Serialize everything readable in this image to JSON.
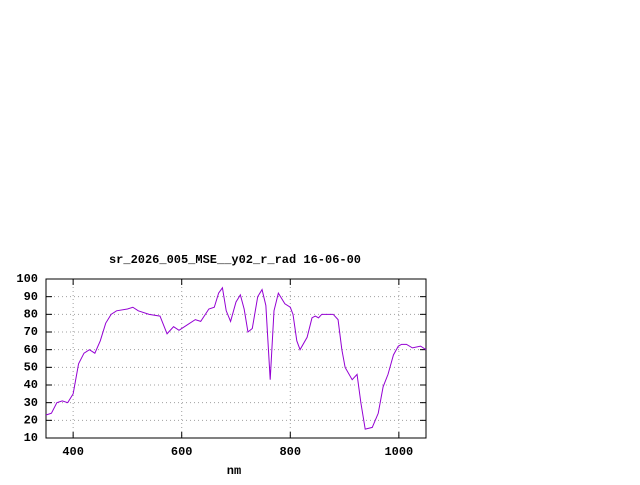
{
  "chart_data": {
    "type": "line",
    "title": "sr_2026_005_MSE__y02_r_rad 16-06-00",
    "x_label": "nm",
    "xlim": [
      350,
      1050
    ],
    "ylim": [
      10,
      100
    ],
    "xticks": [
      400,
      600,
      800,
      1000
    ],
    "yticks": [
      10,
      20,
      30,
      40,
      50,
      60,
      70,
      80,
      90,
      100
    ],
    "grid": true,
    "series": [
      {
        "color": "#9400d3",
        "x": [
          350,
          360,
          370,
          380,
          390,
          400,
          410,
          420,
          430,
          440,
          450,
          460,
          470,
          480,
          500,
          510,
          520,
          540,
          560,
          573,
          585,
          595,
          610,
          625,
          635,
          650,
          660,
          668,
          675,
          682,
          690,
          700,
          708,
          715,
          722,
          730,
          740,
          748,
          755,
          763,
          770,
          778,
          790,
          800,
          805,
          812,
          818,
          831,
          840,
          846,
          852,
          858,
          879,
          888,
          895,
          901,
          914,
          923,
          930,
          938,
          951,
          962,
          971,
          980,
          990,
          999,
          1005,
          1014,
          1025,
          1040,
          1050
        ],
        "values": [
          23,
          24,
          30,
          31,
          30,
          35,
          52,
          58,
          60,
          58,
          65,
          75,
          80,
          82,
          83,
          84,
          82,
          80,
          79,
          69,
          73,
          71,
          74,
          77,
          76,
          83,
          84,
          92,
          95,
          82,
          76,
          87,
          91,
          83,
          70,
          72,
          90,
          94,
          85,
          43,
          82,
          92,
          86,
          84,
          80,
          65,
          60,
          67,
          78,
          79,
          78,
          80,
          80,
          77,
          60,
          50,
          43,
          46,
          30,
          15,
          16,
          24,
          39,
          46,
          57,
          62,
          63,
          63,
          61,
          62,
          60
        ]
      }
    ]
  }
}
